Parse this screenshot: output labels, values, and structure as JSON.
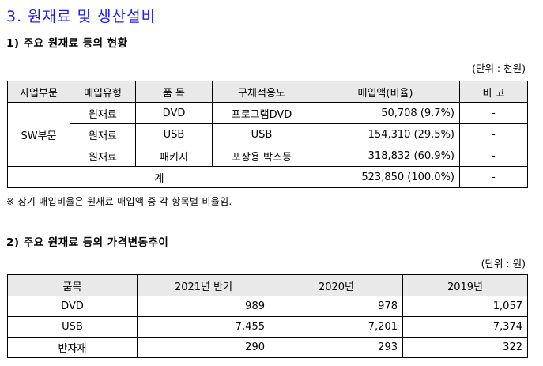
{
  "heading": "3. 원재료 및 생산설비",
  "section1": {
    "title": "1) 주요 원재료 등의 현황",
    "unit": "(단위 : 천원)",
    "headers": [
      "사업부문",
      "매입유형",
      "품 목",
      "구체적용도",
      "매입액(비율)",
      "비 고"
    ],
    "division": "SW부문",
    "rows": [
      {
        "type": "원재료",
        "item": "DVD",
        "use": "프로그램DVD",
        "amount": "50,708 (9.7%)",
        "note": "-"
      },
      {
        "type": "원재료",
        "item": "USB",
        "use": "USB",
        "amount": "154,310 (29.5%)",
        "note": "-"
      },
      {
        "type": "원재료",
        "item": "패키지",
        "use": "포장용 박스등",
        "amount": "318,832 (60.9%)",
        "note": "-"
      }
    ],
    "total": {
      "label": "계",
      "amount": "523,850 (100.0%)",
      "note": "-"
    },
    "footnote": "※ 상기 매입비율은 원재료 매입액 중 각 항목별 비율임."
  },
  "section2": {
    "title": "2) 주요 원재료 등의 가격변동추이",
    "unit": "(단위 : 원)",
    "headers": [
      "품목",
      "2021년 반기",
      "2020년",
      "2019년"
    ],
    "rows": [
      {
        "item": "DVD",
        "v1": "989",
        "v2": "978",
        "v3": "1,057"
      },
      {
        "item": "USB",
        "v1": "7,455",
        "v2": "7,201",
        "v3": "7,374"
      },
      {
        "item": "반자재",
        "v1": "290",
        "v2": "293",
        "v3": "322"
      }
    ]
  }
}
